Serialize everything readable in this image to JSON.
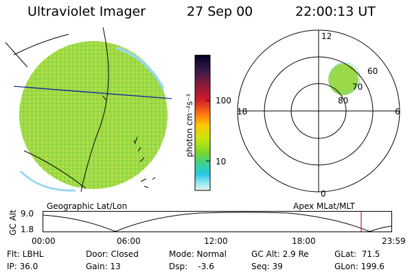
{
  "header": {
    "instrument": "Ultraviolet Imager",
    "date": "27 Sep 00",
    "time": "22:00:13 UT"
  },
  "colorbar": {
    "unit_label": "photon cm⁻²s⁻¹",
    "ticks": [
      "100",
      "10"
    ],
    "scale": "log",
    "colors_top_to_bottom": [
      "#000022",
      "#3a1a4a",
      "#8a1a3a",
      "#d01a2a",
      "#ff7a10",
      "#ffc800",
      "#c8e60a",
      "#7ad72a",
      "#3ad28a",
      "#28c8e6",
      "#8ae6f0",
      "#e8f2f2"
    ]
  },
  "geo_panel": {
    "label": "Geographic Lat/Lon",
    "fill_color": "#9cd94a"
  },
  "polar_panel": {
    "label": "Apex MLat/MLT",
    "mlt_labels": {
      "top": "12",
      "left": "18",
      "right": "6",
      "bottom": "0"
    },
    "mlat_labels": [
      "60",
      "70",
      "80"
    ],
    "fill_color": "#9cd94a"
  },
  "altitude_plot": {
    "ylabel": "GC Alt",
    "yticks": [
      "9.0",
      "1.8"
    ],
    "xticks": [
      "00:00",
      "06:00",
      "12:00",
      "18:00",
      "23:59"
    ],
    "current_marker_color": "#d01a1a"
  },
  "status": {
    "flt": "Flt: LBHL",
    "ip": "IP: 36.0",
    "door": "Door: Closed",
    "gain": "Gain: 13",
    "mode": "Mode: Normal",
    "dsp": "Dsp:    -3.6",
    "gc_alt": "GC Alt: 2.9 Re",
    "seq": "Seq: 39",
    "glat": "GLat:  71.5",
    "glon": "GLon: 199.6"
  }
}
